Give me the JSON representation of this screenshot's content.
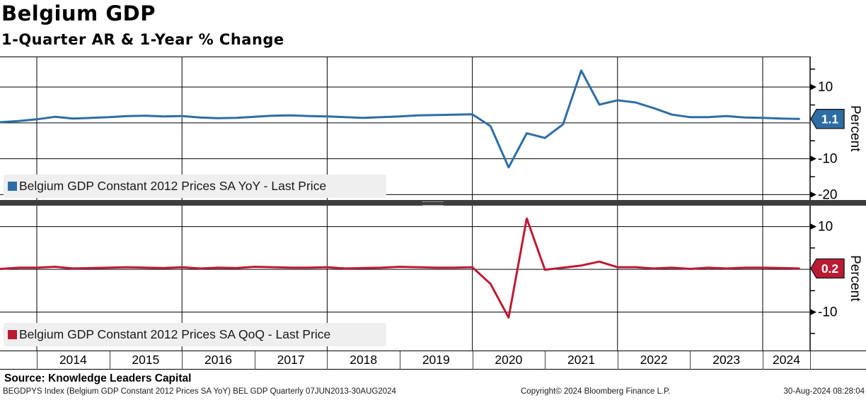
{
  "header": {
    "title": "Belgium GDP",
    "subtitle": "1-Quarter AR & 1-Year % Change"
  },
  "chart_data": [
    {
      "type": "line",
      "panel": "top",
      "legend_label": "Belgium GDP Constant 2012 Prices SA YoY - Last Price",
      "color": "#2e6da4",
      "last_price": "1.1",
      "ylabel": "Percent",
      "ylim": [
        -21.5,
        18.5
      ],
      "yticks_major": [
        10,
        -10,
        -20
      ],
      "gridlines_y": [
        10,
        0,
        -10,
        -20
      ],
      "yticks_minor": [
        15,
        5,
        -5,
        -15
      ],
      "x": [
        2013.5,
        2013.75,
        2014.0,
        2014.25,
        2014.5,
        2014.75,
        2015.0,
        2015.25,
        2015.5,
        2015.75,
        2016.0,
        2016.25,
        2016.5,
        2016.75,
        2017.0,
        2017.25,
        2017.5,
        2017.75,
        2018.0,
        2018.25,
        2018.5,
        2018.75,
        2019.0,
        2019.25,
        2019.5,
        2019.75,
        2020.0,
        2020.25,
        2020.5,
        2020.75,
        2021.0,
        2021.25,
        2021.5,
        2021.75,
        2022.0,
        2022.25,
        2022.5,
        2022.75,
        2023.0,
        2023.25,
        2023.5,
        2023.75,
        2024.0,
        2024.25,
        2024.5
      ],
      "values": [
        0.2,
        0.5,
        1.0,
        1.7,
        1.2,
        1.4,
        1.6,
        1.9,
        2.0,
        1.8,
        1.9,
        1.5,
        1.3,
        1.4,
        1.7,
        2.0,
        2.1,
        1.9,
        1.8,
        1.6,
        1.4,
        1.6,
        1.8,
        2.1,
        2.2,
        2.3,
        2.4,
        -0.9,
        -12.4,
        -2.9,
        -4.2,
        -0.4,
        14.6,
        5.1,
        6.3,
        5.7,
        4.1,
        2.3,
        1.6,
        1.6,
        1.9,
        1.5,
        1.4,
        1.2,
        1.1
      ]
    },
    {
      "type": "line",
      "panel": "bottom",
      "legend_label": "Belgium GDP Constant 2012 Prices SA QoQ - Last Price",
      "color": "#bb1b32",
      "last_price": "0.2",
      "ylabel": "Percent",
      "ylim": [
        -19.0,
        14.9
      ],
      "yticks_major": [
        10,
        -10
      ],
      "gridlines_y": [
        10,
        0,
        -10
      ],
      "yticks_minor": [
        5,
        -5,
        -15
      ],
      "x": [
        2013.5,
        2013.75,
        2014.0,
        2014.25,
        2014.5,
        2014.75,
        2015.0,
        2015.25,
        2015.5,
        2015.75,
        2016.0,
        2016.25,
        2016.5,
        2016.75,
        2017.0,
        2017.25,
        2017.5,
        2017.75,
        2018.0,
        2018.25,
        2018.5,
        2018.75,
        2019.0,
        2019.25,
        2019.5,
        2019.75,
        2020.0,
        2020.25,
        2020.5,
        2020.75,
        2021.0,
        2021.25,
        2021.5,
        2021.75,
        2022.0,
        2022.25,
        2022.5,
        2022.75,
        2023.0,
        2023.25,
        2023.5,
        2023.75,
        2024.0,
        2024.25,
        2024.5
      ],
      "values": [
        0.1,
        0.4,
        0.4,
        0.6,
        0.2,
        0.3,
        0.4,
        0.5,
        0.4,
        0.3,
        0.5,
        0.2,
        0.4,
        0.3,
        0.6,
        0.5,
        0.4,
        0.4,
        0.5,
        0.2,
        0.3,
        0.4,
        0.6,
        0.5,
        0.4,
        0.4,
        0.5,
        -3.4,
        -11.3,
        11.9,
        -0.1,
        0.4,
        0.9,
        1.8,
        0.5,
        0.5,
        0.2,
        0.4,
        0.1,
        0.4,
        0.2,
        0.4,
        0.4,
        0.3,
        0.2
      ]
    }
  ],
  "x_axis": {
    "year_labels": [
      "2014",
      "2015",
      "2016",
      "2017",
      "2018",
      "2019",
      "2020",
      "2021",
      "2022",
      "2023",
      "2024"
    ]
  },
  "footer": {
    "source": "Source: Knowledge Leaders Capital",
    "security_info": "BEGDPYS Index (Belgium GDP Constant 2012 Prices SA YoY) BEL GDP  Quarterly 07JUN2013-30AUG2024",
    "copyright": "Copyright© 2024 Bloomberg Finance L.P.",
    "timestamp": "30-Aug-2024 08:28:04"
  }
}
